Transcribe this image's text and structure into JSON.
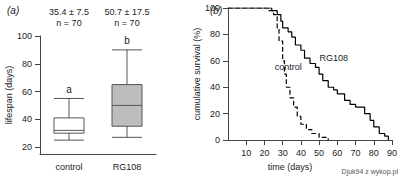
{
  "chart_data": [
    {
      "type": "boxplot",
      "title": "(a)",
      "y_label": "lifespan (days)",
      "categories": [
        "control",
        "RG108"
      ],
      "boxes": [
        [
          25,
          30,
          32,
          41,
          55
        ],
        [
          27,
          35,
          50,
          65,
          90
        ]
      ],
      "colors": [
        "#ffffff",
        "#bdbdbd"
      ],
      "summary": [
        {
          "label": "35.4 ± 7.5",
          "n_label": "n = 70"
        },
        {
          "label": "50.7 ± 17.5",
          "n_label": "n = 70"
        }
      ],
      "letters": [
        "a",
        "b"
      ],
      "ylim": [
        15,
        100
      ],
      "yticks": [
        20,
        40,
        60,
        80,
        100
      ],
      "grid": false
    },
    {
      "type": "line",
      "title": "(b)",
      "x_label": "time (days)",
      "y_label": "cumulative survival (%)",
      "series": [
        {
          "name": "control",
          "color": "#000000",
          "line_style": "dashed",
          "x": [
            0,
            22,
            25,
            27,
            28,
            30,
            31,
            32,
            34,
            36,
            38,
            40,
            43,
            46,
            50,
            55
          ],
          "values": [
            100,
            98,
            95,
            85,
            75,
            60,
            50,
            40,
            32,
            25,
            18,
            12,
            8,
            5,
            2,
            0
          ]
        },
        {
          "name": "RG108",
          "color": "#000000",
          "line_style": "solid",
          "x": [
            0,
            24,
            27,
            29,
            30,
            33,
            35,
            37,
            40,
            42,
            45,
            48,
            50,
            52,
            55,
            58,
            60,
            64,
            67,
            70,
            75,
            78,
            80,
            83,
            86,
            88
          ],
          "values": [
            100,
            98,
            95,
            90,
            85,
            82,
            78,
            72,
            68,
            62,
            58,
            55,
            50,
            45,
            40,
            38,
            35,
            30,
            27,
            25,
            20,
            15,
            10,
            5,
            3,
            0
          ]
        }
      ],
      "annotations": [
        {
          "text": "control",
          "x": 33,
          "y": 55
        },
        {
          "text": "RG108",
          "x": 58,
          "y": 62
        }
      ],
      "xlim": [
        0,
        90
      ],
      "xticks": [
        10,
        20,
        30,
        40,
        50,
        60,
        70,
        80,
        90
      ],
      "ylim": [
        0,
        100
      ],
      "yticks": [
        0,
        20,
        40,
        60,
        80,
        100
      ],
      "grid": false
    }
  ],
  "watermark": "Djuk94 z wykop.pl"
}
